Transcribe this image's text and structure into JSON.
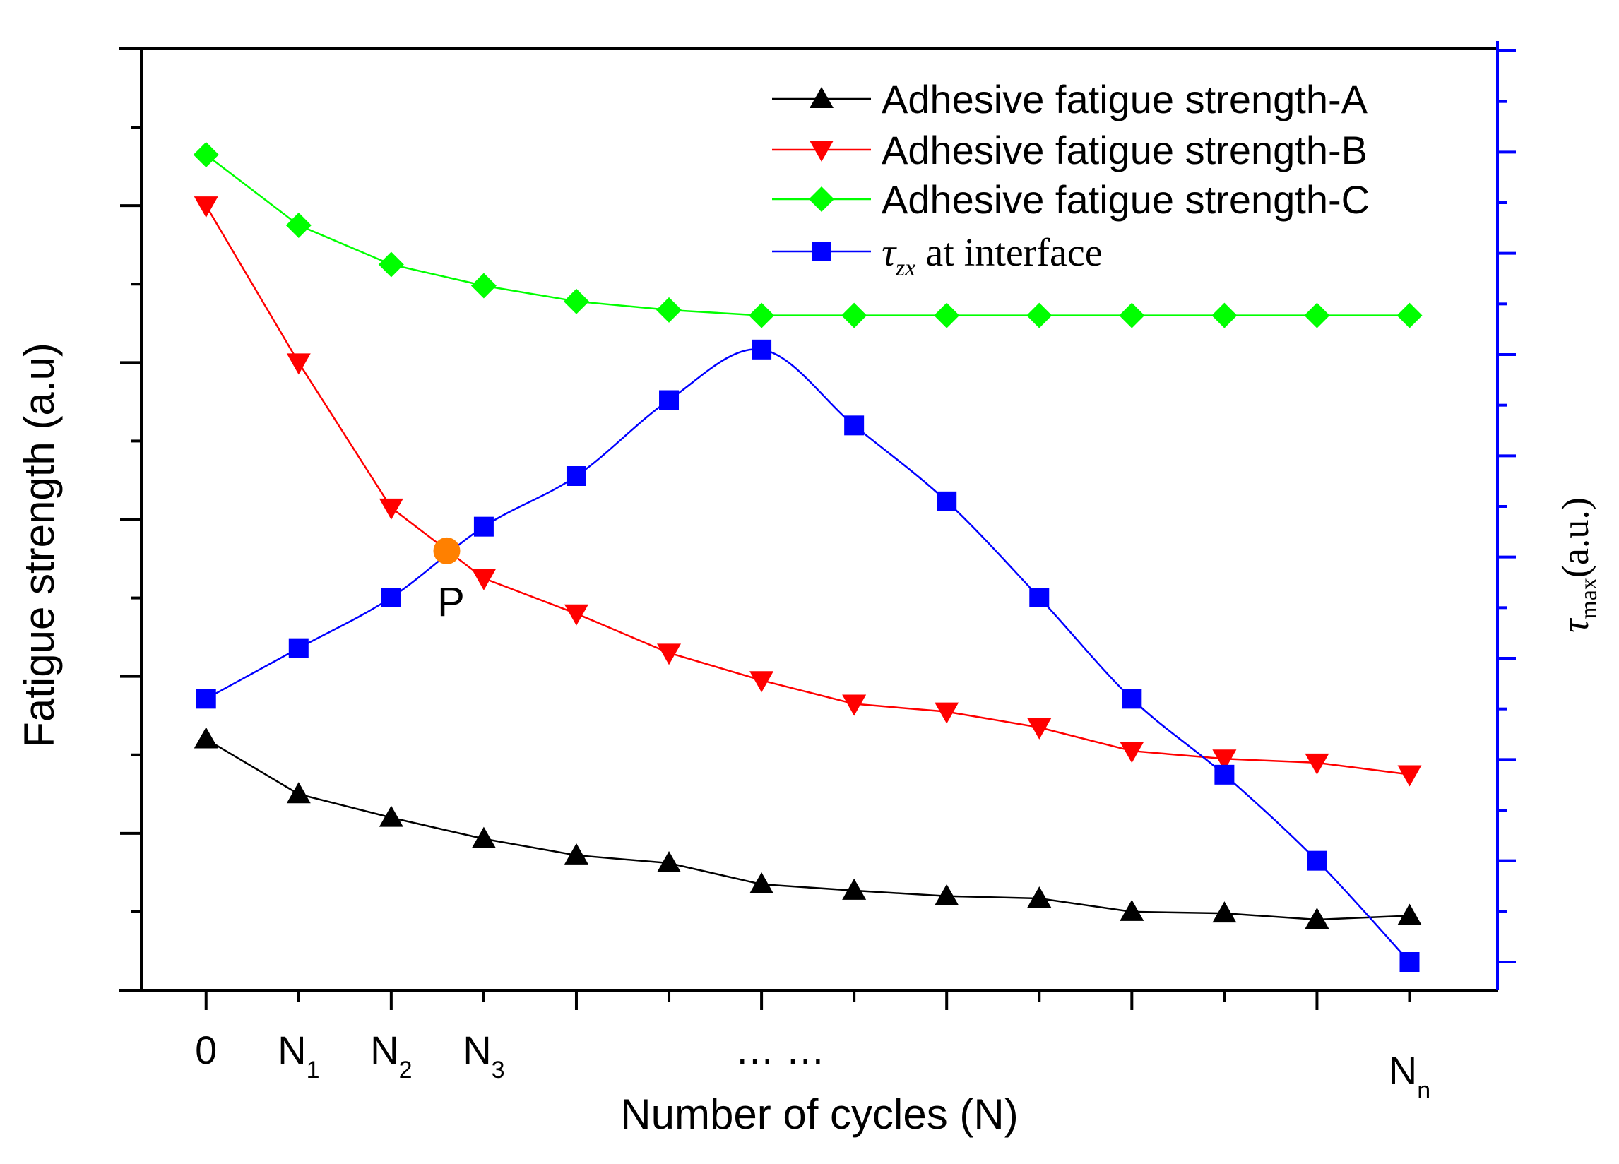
{
  "chart_data": {
    "type": "line",
    "title": "",
    "xlabel": "Number of cycles (N)",
    "ylabel_left": "Fatigue strength (a.u)",
    "ylabel_right": {
      "symbol": "τ",
      "subscript": "max",
      "unit": "(a.u.)"
    },
    "x": [
      0,
      1,
      2,
      3,
      4,
      5,
      6,
      7,
      8,
      9,
      10,
      11,
      12,
      13
    ],
    "xlim": [
      -0.7,
      13.95
    ],
    "x_ticks": [
      0,
      1,
      2,
      3,
      4,
      5,
      6,
      7,
      8,
      9,
      10,
      11,
      12,
      13
    ],
    "x_tick_labels": [
      {
        "x": 0,
        "main": "0",
        "sub": ""
      },
      {
        "x": 1,
        "main": "N",
        "sub": "1"
      },
      {
        "x": 2,
        "main": "N",
        "sub": "2"
      },
      {
        "x": 3,
        "main": "N",
        "sub": "3"
      },
      {
        "x": 6.2,
        "main": "… …",
        "sub": ""
      },
      {
        "x": 13,
        "main": "N",
        "sub": "n"
      }
    ],
    "ylim_left": [
      0,
      12
    ],
    "ylim_right": [
      0,
      9.3
    ],
    "legend_position": "top-right",
    "series": [
      {
        "name": "Adhesive fatigue strength-A",
        "axis": "left",
        "color": "#000000",
        "marker": "triangle-up",
        "values": [
          3.2,
          2.5,
          2.2,
          1.93,
          1.72,
          1.62,
          1.35,
          1.27,
          1.2,
          1.17,
          1.0,
          0.98,
          0.9,
          0.95
        ]
      },
      {
        "name": "Adhesive fatigue strength-B",
        "axis": "left",
        "color": "#ff0000",
        "marker": "triangle-down",
        "values": [
          10.0,
          8.0,
          6.15,
          5.25,
          4.8,
          4.3,
          3.95,
          3.65,
          3.55,
          3.35,
          3.05,
          2.95,
          2.9,
          2.75
        ]
      },
      {
        "name": "Adhesive fatigue strength-C",
        "axis": "left",
        "color": "#00ff00",
        "marker": "diamond",
        "values": [
          10.65,
          9.75,
          9.25,
          8.98,
          8.78,
          8.67,
          8.6,
          8.6,
          8.6,
          8.6,
          8.6,
          8.6,
          8.6,
          8.6
        ]
      },
      {
        "name_symbol": "τ",
        "name_subscript": "zx",
        "name_rest": "at interface",
        "axis": "right",
        "color": "#0000ff",
        "marker": "square",
        "values": [
          2.6,
          3.1,
          3.6,
          4.3,
          4.8,
          5.55,
          6.05,
          5.3,
          4.55,
          3.6,
          2.6,
          1.85,
          1.0,
          0.0
        ]
      }
    ],
    "annotation": {
      "label": "P",
      "x": 2.6,
      "y_left": 5.6,
      "color": "#ff8000"
    }
  }
}
